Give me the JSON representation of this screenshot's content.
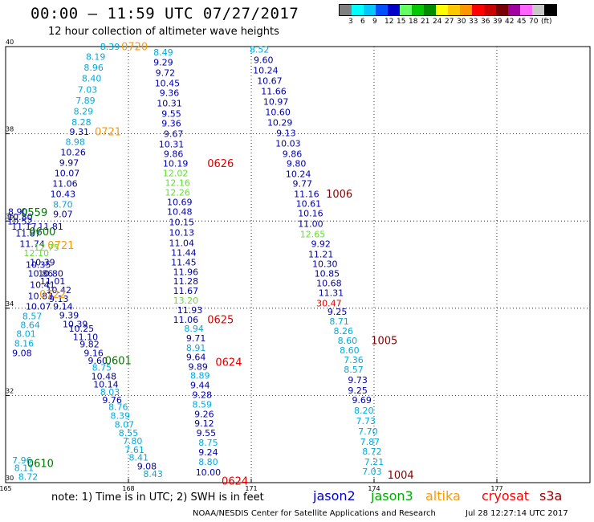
{
  "header": {
    "title": "00:00 – 11:59 UTC 07/27/2017",
    "subtitle": "12 hour collection of altimeter wave heights"
  },
  "legend": {
    "colors": [
      "#808080",
      "#00ffff",
      "#00c8ff",
      "#0050ff",
      "#0000c8",
      "#64ff64",
      "#00c800",
      "#008c00",
      "#ffff00",
      "#ffc800",
      "#ff9600",
      "#ff0000",
      "#c80000",
      "#780000",
      "#a000a0",
      "#ff64ff",
      "#c8c8c8",
      "#000000"
    ],
    "labels": [
      "3",
      "6",
      "9",
      "12",
      "15",
      "18",
      "21",
      "24",
      "27",
      "30",
      "33",
      "36",
      "39",
      "42",
      "45",
      "70",
      "(ft)"
    ]
  },
  "footer": {
    "note": "note:  1) Time is in UTC;  2) SWH is in feet",
    "satellites": [
      {
        "name": "jason2",
        "color": "#0000cc"
      },
      {
        "name": "jason3",
        "color": "#00aa00"
      },
      {
        "name": "altika",
        "color": "#ff9900"
      },
      {
        "name": "cryosat",
        "color": "#ff0000"
      },
      {
        "name": "s3a",
        "color": "#990000"
      }
    ],
    "credit": "NOAA/NESDIS Center for Satellite Applications and Research",
    "timestamp": "Jul 28 12:27:14 UTC 2017"
  },
  "chart_data": {
    "type": "scatter",
    "title": "00:00 – 11:59 UTC 07/27/2017",
    "subtitle": "12 hour collection of altimeter wave heights",
    "xlim": [
      165,
      180
    ],
    "ylim": [
      30,
      40
    ],
    "xticks": [
      "165",
      "168",
      "171",
      "174",
      "177"
    ],
    "yticks": [
      "40",
      "38",
      "36",
      "34",
      "32",
      "30"
    ],
    "grid": true,
    "color_map": {
      "j2_dark": "#0000aa",
      "j2_light": "#00aadd",
      "j3": "#66dd33",
      "al": "#ff9900",
      "cr": "#dd0000",
      "s3": "#880000",
      "j3_time": "#007700"
    },
    "observations": [
      [
        "8.39",
        167.55,
        39.98,
        "j2_light"
      ],
      [
        "8.19",
        167.2,
        39.75,
        "j2_light"
      ],
      [
        "8.96",
        167.15,
        39.5,
        "j2_light"
      ],
      [
        "8.40",
        167.1,
        39.25,
        "j2_light"
      ],
      [
        "7.03",
        167.0,
        39.0,
        "j2_light"
      ],
      [
        "7.89",
        166.95,
        38.75,
        "j2_light"
      ],
      [
        "8.29",
        166.9,
        38.5,
        "j2_light"
      ],
      [
        "8.28",
        166.85,
        38.25,
        "j2_light"
      ],
      [
        "9.31",
        166.8,
        38.03,
        "j2_dark"
      ],
      [
        "8.98",
        166.7,
        37.8,
        "j2_light"
      ],
      [
        "10.26",
        166.65,
        37.56,
        "j2_dark"
      ],
      [
        "9.97",
        166.55,
        37.32,
        "j2_dark"
      ],
      [
        "10.07",
        166.5,
        37.08,
        "j2_dark"
      ],
      [
        "11.06",
        166.45,
        36.84,
        "j2_dark"
      ],
      [
        "10.43",
        166.4,
        36.6,
        "j2_dark"
      ],
      [
        "8.70",
        166.4,
        36.36,
        "j2_light"
      ],
      [
        "9.07",
        166.4,
        36.14,
        "j2_dark"
      ],
      [
        "8.90",
        165.3,
        36.2,
        "j2_dark"
      ],
      [
        "10.80",
        165.35,
        36.08,
        "j2_dark"
      ],
      [
        "10.52",
        165.35,
        35.98,
        "j2_dark"
      ],
      [
        "11.17",
        165.45,
        35.86,
        "j2_dark"
      ],
      [
        "11.81",
        166.1,
        35.86,
        "j2_dark"
      ],
      [
        "11.87",
        165.55,
        35.7,
        "j2_dark"
      ],
      [
        "11.74",
        165.65,
        35.46,
        "j2_dark"
      ],
      [
        "12.75",
        166.0,
        35.38,
        "j3"
      ],
      [
        "12.10",
        165.75,
        35.25,
        "j3"
      ],
      [
        "10.39",
        165.9,
        35.04,
        "j2_dark"
      ],
      [
        "10.35",
        165.8,
        34.98,
        "j2_dark"
      ],
      [
        "10.80",
        166.1,
        34.78,
        "j2_dark"
      ],
      [
        "10.86",
        165.85,
        34.78,
        "j2_dark"
      ],
      [
        "11.01",
        166.15,
        34.6,
        "j2_dark"
      ],
      [
        "10.41",
        165.9,
        34.52,
        "j2_dark"
      ],
      [
        "10.42",
        166.3,
        34.4,
        "j2_dark"
      ],
      [
        "10.83",
        165.85,
        34.26,
        "j2_dark"
      ],
      [
        "9.13",
        166.3,
        34.2,
        "j2_dark"
      ],
      [
        "10.07",
        165.8,
        34.02,
        "j2_dark"
      ],
      [
        "9.14",
        166.4,
        34.02,
        "j2_dark"
      ],
      [
        "8.57",
        165.65,
        33.8,
        "j2_light"
      ],
      [
        "9.39",
        166.55,
        33.82,
        "j2_dark"
      ],
      [
        "8.64",
        165.6,
        33.6,
        "j2_light"
      ],
      [
        "10.39",
        166.7,
        33.62,
        "j2_dark"
      ],
      [
        "10.25",
        166.85,
        33.52,
        "j2_dark"
      ],
      [
        "8.01",
        165.5,
        33.4,
        "j2_light"
      ],
      [
        "11.10",
        166.95,
        33.32,
        "j2_dark"
      ],
      [
        "8.16",
        165.45,
        33.18,
        "j2_light"
      ],
      [
        "9.82",
        167.05,
        33.16,
        "j2_dark"
      ],
      [
        "9.08",
        165.4,
        32.96,
        "j2_dark"
      ],
      [
        "9.16",
        167.15,
        32.96,
        "j2_dark"
      ],
      [
        "9.60",
        167.25,
        32.78,
        "j2_dark"
      ],
      [
        "8.75",
        167.35,
        32.62,
        "j2_light"
      ],
      [
        "10.48",
        167.4,
        32.42,
        "j2_dark"
      ],
      [
        "10.14",
        167.45,
        32.24,
        "j2_dark"
      ],
      [
        "8.03",
        167.55,
        32.06,
        "j2_light"
      ],
      [
        "9.76",
        167.6,
        31.88,
        "j2_dark"
      ],
      [
        "8.76",
        167.75,
        31.72,
        "j2_light"
      ],
      [
        "8.39",
        167.8,
        31.52,
        "j2_light"
      ],
      [
        "8.07",
        167.9,
        31.32,
        "j2_light"
      ],
      [
        "8.55",
        168.0,
        31.12,
        "j2_light"
      ],
      [
        "7.80",
        168.1,
        30.94,
        "j2_light"
      ],
      [
        "7.61",
        168.15,
        30.74,
        "j2_light"
      ],
      [
        "8.41",
        168.25,
        30.56,
        "j2_light"
      ],
      [
        "9.08",
        168.45,
        30.36,
        "j2_dark"
      ],
      [
        "8.43",
        168.6,
        30.18,
        "j2_light"
      ],
      [
        "7.96",
        165.4,
        30.5,
        "j2_light"
      ],
      [
        "8.11",
        165.45,
        30.32,
        "j2_light"
      ],
      [
        "8.72",
        165.55,
        30.12,
        "j2_light"
      ],
      [
        "8.49",
        168.85,
        39.85,
        "j2_light"
      ],
      [
        "9.29",
        168.85,
        39.62,
        "j2_dark"
      ],
      [
        "9.72",
        168.9,
        39.38,
        "j2_dark"
      ],
      [
        "10.45",
        168.95,
        39.14,
        "j2_dark"
      ],
      [
        "9.36",
        169.0,
        38.92,
        "j2_dark"
      ],
      [
        "10.31",
        169.0,
        38.68,
        "j2_dark"
      ],
      [
        "9.55",
        169.05,
        38.44,
        "j2_dark"
      ],
      [
        "9.36",
        169.05,
        38.22,
        "j2_dark"
      ],
      [
        "9.67",
        169.1,
        37.98,
        "j2_dark"
      ],
      [
        "10.31",
        169.05,
        37.74,
        "j2_dark"
      ],
      [
        "9.86",
        169.1,
        37.52,
        "j2_dark"
      ],
      [
        "10.19",
        169.15,
        37.3,
        "j2_dark"
      ],
      [
        "12.02",
        169.15,
        37.08,
        "j3"
      ],
      [
        "12.16",
        169.2,
        36.86,
        "j3"
      ],
      [
        "12.26",
        169.2,
        36.64,
        "j3"
      ],
      [
        "10.69",
        169.25,
        36.42,
        "j2_dark"
      ],
      [
        "10.48",
        169.25,
        36.2,
        "j2_dark"
      ],
      [
        "10.15",
        169.3,
        35.96,
        "j2_dark"
      ],
      [
        "10.13",
        169.3,
        35.72,
        "j2_dark"
      ],
      [
        "11.04",
        169.3,
        35.48,
        "j2_dark"
      ],
      [
        "11.44",
        169.35,
        35.26,
        "j2_dark"
      ],
      [
        "11.45",
        169.35,
        35.04,
        "j2_dark"
      ],
      [
        "11.96",
        169.4,
        34.82,
        "j2_dark"
      ],
      [
        "11.28",
        169.4,
        34.6,
        "j2_dark"
      ],
      [
        "11.67",
        169.4,
        34.38,
        "j2_dark"
      ],
      [
        "13.20",
        169.4,
        34.16,
        "j3"
      ],
      [
        "11.93",
        169.5,
        33.94,
        "j2_dark"
      ],
      [
        "11.06",
        169.4,
        33.72,
        "j2_dark"
      ],
      [
        "8.94",
        169.6,
        33.52,
        "j2_light"
      ],
      [
        "9.71",
        169.65,
        33.3,
        "j2_dark"
      ],
      [
        "8.91",
        169.65,
        33.08,
        "j2_light"
      ],
      [
        "9.64",
        169.65,
        32.86,
        "j2_dark"
      ],
      [
        "9.89",
        169.7,
        32.64,
        "j2_dark"
      ],
      [
        "8.89",
        169.75,
        32.44,
        "j2_light"
      ],
      [
        "9.44",
        169.75,
        32.22,
        "j2_dark"
      ],
      [
        "9.28",
        169.8,
        32.0,
        "j2_dark"
      ],
      [
        "8.59",
        169.8,
        31.78,
        "j2_light"
      ],
      [
        "9.26",
        169.85,
        31.56,
        "j2_dark"
      ],
      [
        "9.12",
        169.85,
        31.34,
        "j2_dark"
      ],
      [
        "9.55",
        169.9,
        31.12,
        "j2_dark"
      ],
      [
        "8.75",
        169.95,
        30.9,
        "j2_light"
      ],
      [
        "9.24",
        169.95,
        30.68,
        "j2_dark"
      ],
      [
        "8.80",
        169.95,
        30.46,
        "j2_light"
      ],
      [
        "10.00",
        169.95,
        30.22,
        "j2_dark"
      ],
      [
        "8.52",
        171.2,
        39.92,
        "j2_light"
      ],
      [
        "9.60",
        171.3,
        39.68,
        "j2_dark"
      ],
      [
        "10.24",
        171.35,
        39.44,
        "j2_dark"
      ],
      [
        "10.67",
        171.45,
        39.2,
        "j2_dark"
      ],
      [
        "11.66",
        171.55,
        38.96,
        "j2_dark"
      ],
      [
        "10.97",
        171.6,
        38.72,
        "j2_dark"
      ],
      [
        "10.60",
        171.65,
        38.48,
        "j2_dark"
      ],
      [
        "10.29",
        171.7,
        38.24,
        "j2_dark"
      ],
      [
        "9.13",
        171.85,
        38.0,
        "j2_dark"
      ],
      [
        "10.03",
        171.9,
        37.76,
        "j2_dark"
      ],
      [
        "9.86",
        172.0,
        37.52,
        "j2_dark"
      ],
      [
        "9.80",
        172.1,
        37.3,
        "j2_dark"
      ],
      [
        "10.24",
        172.15,
        37.06,
        "j2_dark"
      ],
      [
        "9.77",
        172.25,
        36.84,
        "j2_dark"
      ],
      [
        "11.16",
        172.35,
        36.6,
        "j2_dark"
      ],
      [
        "10.61",
        172.4,
        36.38,
        "j2_dark"
      ],
      [
        "10.16",
        172.45,
        36.16,
        "j2_dark"
      ],
      [
        "11.00",
        172.45,
        35.92,
        "j2_dark"
      ],
      [
        "12.65",
        172.5,
        35.68,
        "j3"
      ],
      [
        "9.92",
        172.7,
        35.46,
        "j2_dark"
      ],
      [
        "11.21",
        172.7,
        35.22,
        "j2_dark"
      ],
      [
        "10.30",
        172.8,
        35.0,
        "j2_dark"
      ],
      [
        "10.85",
        172.85,
        34.78,
        "j2_dark"
      ],
      [
        "10.68",
        172.9,
        34.56,
        "j2_dark"
      ],
      [
        "11.31",
        172.95,
        34.34,
        "j2_dark"
      ],
      [
        "30.47",
        172.9,
        34.1,
        "cr"
      ],
      [
        "9.25",
        173.1,
        33.9,
        "j2_dark"
      ],
      [
        "8.71",
        173.15,
        33.68,
        "j2_light"
      ],
      [
        "8.26",
        173.25,
        33.46,
        "j2_light"
      ],
      [
        "8.60",
        173.35,
        33.24,
        "j2_light"
      ],
      [
        "8.60",
        173.4,
        33.02,
        "j2_light"
      ],
      [
        "7.36",
        173.5,
        32.8,
        "j2_light"
      ],
      [
        "8.57",
        173.5,
        32.58,
        "j2_light"
      ],
      [
        "9.73",
        173.6,
        32.34,
        "j2_dark"
      ],
      [
        "9.25",
        173.6,
        32.1,
        "j2_dark"
      ],
      [
        "9.69",
        173.7,
        31.88,
        "j2_dark"
      ],
      [
        "8.20",
        173.75,
        31.64,
        "j2_light"
      ],
      [
        "7.73",
        173.8,
        31.4,
        "j2_light"
      ],
      [
        "7.70",
        173.85,
        31.16,
        "j2_light"
      ],
      [
        "7.87",
        173.9,
        30.92,
        "j2_light"
      ],
      [
        "8.72",
        173.95,
        30.7,
        "j2_light"
      ],
      [
        "7.21",
        174.0,
        30.46,
        "j2_light"
      ],
      [
        "7.03",
        173.95,
        30.24,
        "j2_light"
      ]
    ],
    "time_labels": [
      [
        "0720",
        168.15,
        39.98,
        "al"
      ],
      [
        "0721",
        167.5,
        38.03,
        "al"
      ],
      [
        "0626",
        170.25,
        37.3,
        "cr"
      ],
      [
        "1006",
        173.15,
        36.6,
        "s3"
      ],
      [
        "0559",
        165.7,
        36.18,
        "j3_time"
      ],
      [
        "0600",
        165.9,
        35.74,
        "j3_time"
      ],
      [
        "0721",
        166.35,
        35.42,
        "al"
      ],
      [
        "0722",
        166.15,
        34.3,
        "al"
      ],
      [
        "0625",
        170.25,
        33.72,
        "cr"
      ],
      [
        "1005",
        174.25,
        33.24,
        "s3"
      ],
      [
        "0601",
        167.75,
        32.78,
        "j3_time"
      ],
      [
        "0624",
        170.45,
        32.74,
        "cr"
      ],
      [
        "0610",
        165.85,
        30.42,
        "j3_time"
      ],
      [
        "0624",
        170.6,
        30.02,
        "cr"
      ],
      [
        "1004",
        174.65,
        30.16,
        "s3"
      ]
    ]
  }
}
